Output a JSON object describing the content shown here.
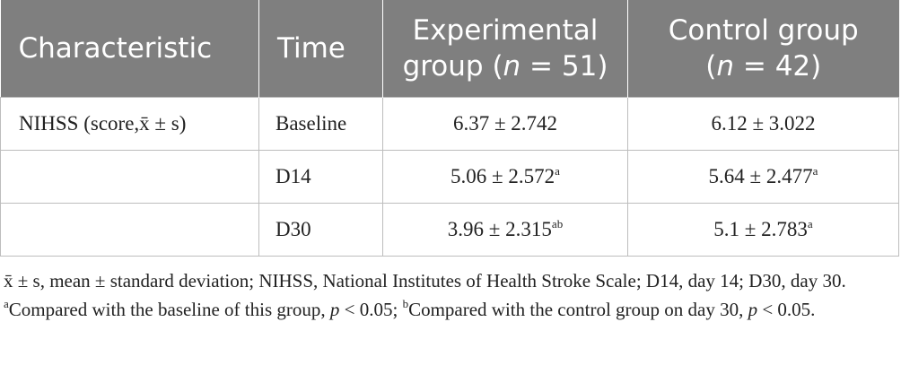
{
  "table": {
    "headers": {
      "characteristic": "Characteristic",
      "time": "Time",
      "experimental_line1": "Experimental",
      "experimental_line2_pre": "group (",
      "experimental_n": "n",
      "experimental_line2_post": " = 51)",
      "control_line1": "Control group",
      "control_line2_pre": "(",
      "control_n": "n",
      "control_line2_post": " = 42)"
    },
    "rows": [
      {
        "characteristic": "NIHSS (score,x̄ ± s)",
        "time": "Baseline",
        "experimental": "6.37 ± 2.742",
        "experimental_sup": "",
        "control": "6.12 ± 3.022",
        "control_sup": ""
      },
      {
        "characteristic": "",
        "time": "D14",
        "experimental": "5.06 ± 2.572",
        "experimental_sup": "a",
        "control": "5.64 ± 2.477",
        "control_sup": "a"
      },
      {
        "characteristic": "",
        "time": "D30",
        "experimental": "3.96 ± 2.315",
        "experimental_sup": "ab",
        "control": "5.1 ± 2.783",
        "control_sup": "a"
      }
    ]
  },
  "footnote": {
    "part1": "x̄ ± s, mean ± standard deviation; NIHSS, National Institutes of Health Stroke Scale; D14, day 14; D30, day 30. ",
    "sup_a": "a",
    "part2": "Compared with the baseline of this group, ",
    "p1": "p",
    "part3": " < 0.05; ",
    "sup_b": "b",
    "part4": "Compared with the control group on day 30, ",
    "p2": "p",
    "part5": " < 0.05."
  }
}
